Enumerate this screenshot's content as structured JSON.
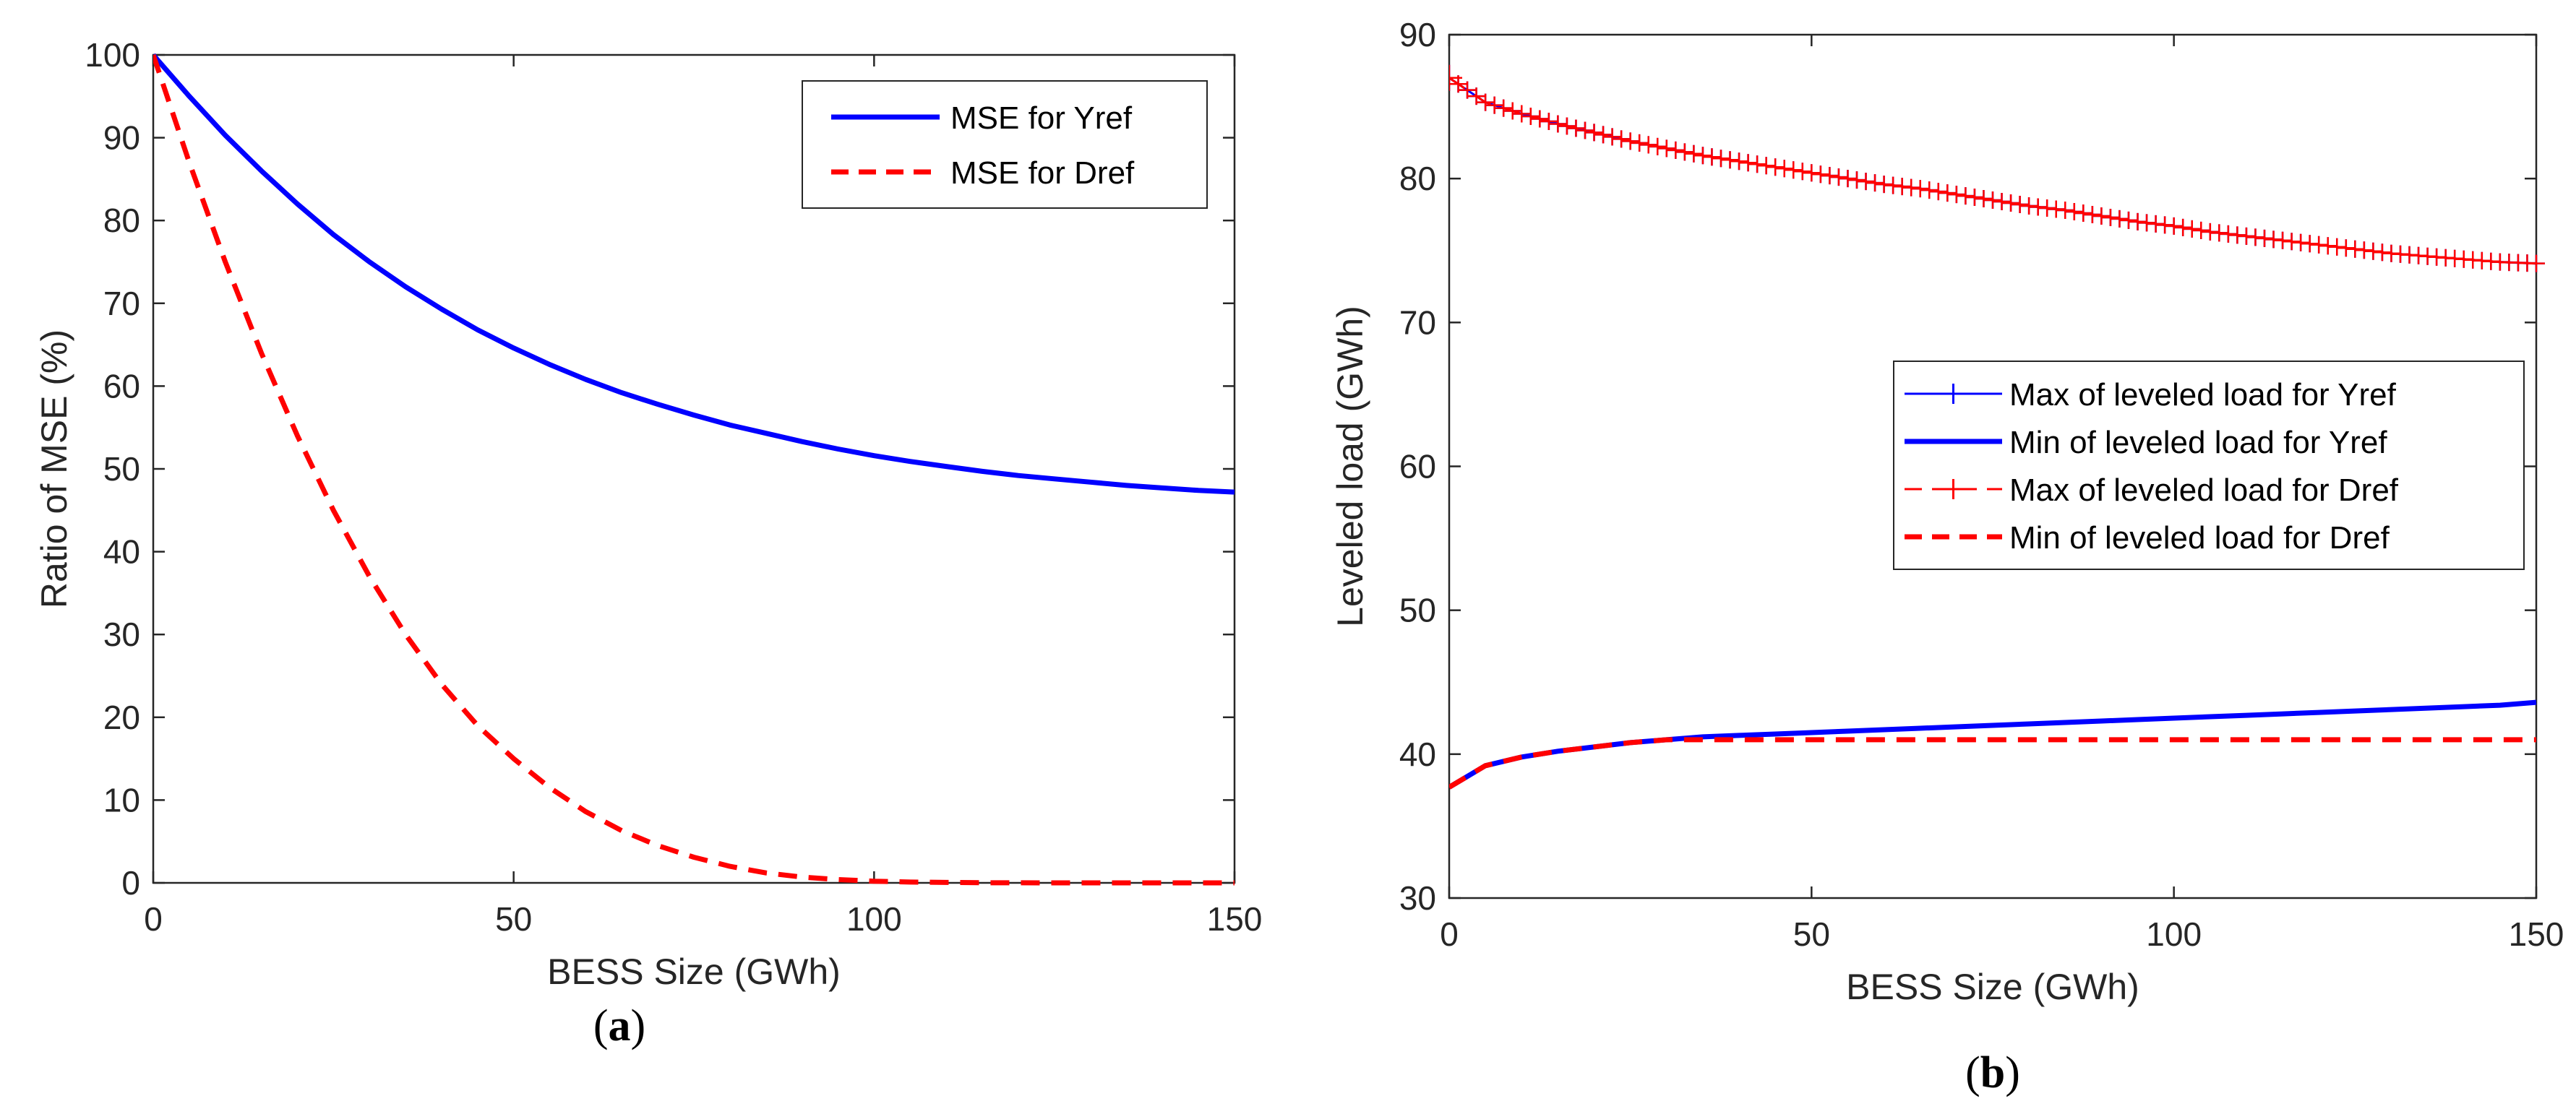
{
  "chart_data": [
    {
      "type": "line",
      "panel_label": "(a)",
      "panel_letter": "a",
      "xlabel": "BESS Size (GWh)",
      "ylabel": "Ratio of MSE (%)",
      "xlim": [
        0,
        150
      ],
      "ylim": [
        0,
        100
      ],
      "xticks": [
        "0",
        "50",
        "100",
        "150"
      ],
      "yticks": [
        "0",
        "10",
        "20",
        "30",
        "40",
        "50",
        "60",
        "70",
        "80",
        "90",
        "100"
      ],
      "grid": false,
      "legend_position": "top-right",
      "x": [
        0,
        5,
        10,
        15,
        20,
        25,
        30,
        35,
        40,
        45,
        50,
        55,
        60,
        65,
        70,
        75,
        80,
        85,
        90,
        95,
        100,
        105,
        110,
        115,
        120,
        125,
        130,
        135,
        140,
        145,
        150
      ],
      "series": [
        {
          "name": "MSE for Yref",
          "color": "#0000ff",
          "style": "solid",
          "values": [
            100,
            95.0,
            90.3,
            86.0,
            82.0,
            78.3,
            75.0,
            72.0,
            69.3,
            66.8,
            64.6,
            62.6,
            60.8,
            59.2,
            57.8,
            56.5,
            55.3,
            54.3,
            53.3,
            52.4,
            51.6,
            50.9,
            50.3,
            49.7,
            49.2,
            48.8,
            48.4,
            48.0,
            47.7,
            47.4,
            47.2
          ]
        },
        {
          "name": "MSE for Dref",
          "color": "#ff0000",
          "style": "dashed",
          "values": [
            100,
            87.0,
            75.0,
            64.0,
            54.0,
            45.0,
            37.0,
            30.0,
            24.0,
            19.0,
            15.0,
            11.5,
            8.6,
            6.3,
            4.5,
            3.1,
            2.0,
            1.2,
            0.7,
            0.4,
            0.2,
            0.1,
            0.05,
            0.02,
            0.01,
            0,
            0,
            0,
            0,
            0,
            0
          ]
        }
      ]
    },
    {
      "type": "line",
      "panel_label": "(b)",
      "panel_letter": "b",
      "xlabel": "BESS Size (GWh)",
      "ylabel": "Leveled load (GWh)",
      "xlim": [
        0,
        150
      ],
      "ylim": [
        30,
        90
      ],
      "xticks": [
        "0",
        "50",
        "100",
        "150"
      ],
      "yticks": [
        "30",
        "40",
        "50",
        "60",
        "70",
        "80",
        "90"
      ],
      "grid": false,
      "legend_position": "center-right",
      "x": [
        0,
        5,
        10,
        15,
        20,
        25,
        30,
        35,
        40,
        45,
        50,
        55,
        60,
        65,
        70,
        75,
        80,
        85,
        90,
        95,
        100,
        105,
        110,
        115,
        120,
        125,
        130,
        135,
        140,
        145,
        150
      ],
      "series": [
        {
          "name": "Max of leveled load for Yref",
          "color": "#0000ff",
          "style": "solid-plus",
          "values": [
            87.0,
            85.3,
            84.5,
            83.8,
            83.2,
            82.6,
            82.1,
            81.6,
            81.2,
            80.8,
            80.4,
            80.0,
            79.6,
            79.3,
            78.9,
            78.5,
            78.1,
            77.8,
            77.4,
            77.0,
            76.7,
            76.3,
            76.0,
            75.7,
            75.4,
            75.1,
            74.8,
            74.6,
            74.4,
            74.2,
            74.1
          ]
        },
        {
          "name": "Min of leveled load for Yref",
          "color": "#0000ff",
          "style": "solid",
          "values": [
            37.7,
            39.2,
            39.8,
            40.2,
            40.5,
            40.8,
            41.0,
            41.2,
            41.3,
            41.4,
            41.5,
            41.6,
            41.7,
            41.8,
            41.9,
            42.0,
            42.1,
            42.2,
            42.3,
            42.4,
            42.5,
            42.6,
            42.7,
            42.8,
            42.9,
            43.0,
            43.1,
            43.2,
            43.3,
            43.4,
            43.6
          ]
        },
        {
          "name": "Max of leveled load for Dref",
          "color": "#ff0000",
          "style": "dashed-plus",
          "values": [
            87.0,
            85.3,
            84.5,
            83.8,
            83.2,
            82.6,
            82.1,
            81.6,
            81.2,
            80.8,
            80.4,
            80.0,
            79.6,
            79.3,
            78.9,
            78.5,
            78.1,
            77.8,
            77.4,
            77.0,
            76.7,
            76.3,
            76.0,
            75.7,
            75.4,
            75.1,
            74.8,
            74.6,
            74.4,
            74.2,
            74.1
          ]
        },
        {
          "name": "Min of leveled load for Dref",
          "color": "#ff0000",
          "style": "dashed",
          "values": [
            37.7,
            39.2,
            39.8,
            40.2,
            40.5,
            40.8,
            41.0,
            41.0,
            41.0,
            41.0,
            41.0,
            41.0,
            41.0,
            41.0,
            41.0,
            41.0,
            41.0,
            41.0,
            41.0,
            41.0,
            41.0,
            41.0,
            41.0,
            41.0,
            41.0,
            41.0,
            41.0,
            41.0,
            41.0,
            41.0,
            41.0
          ]
        }
      ]
    }
  ]
}
